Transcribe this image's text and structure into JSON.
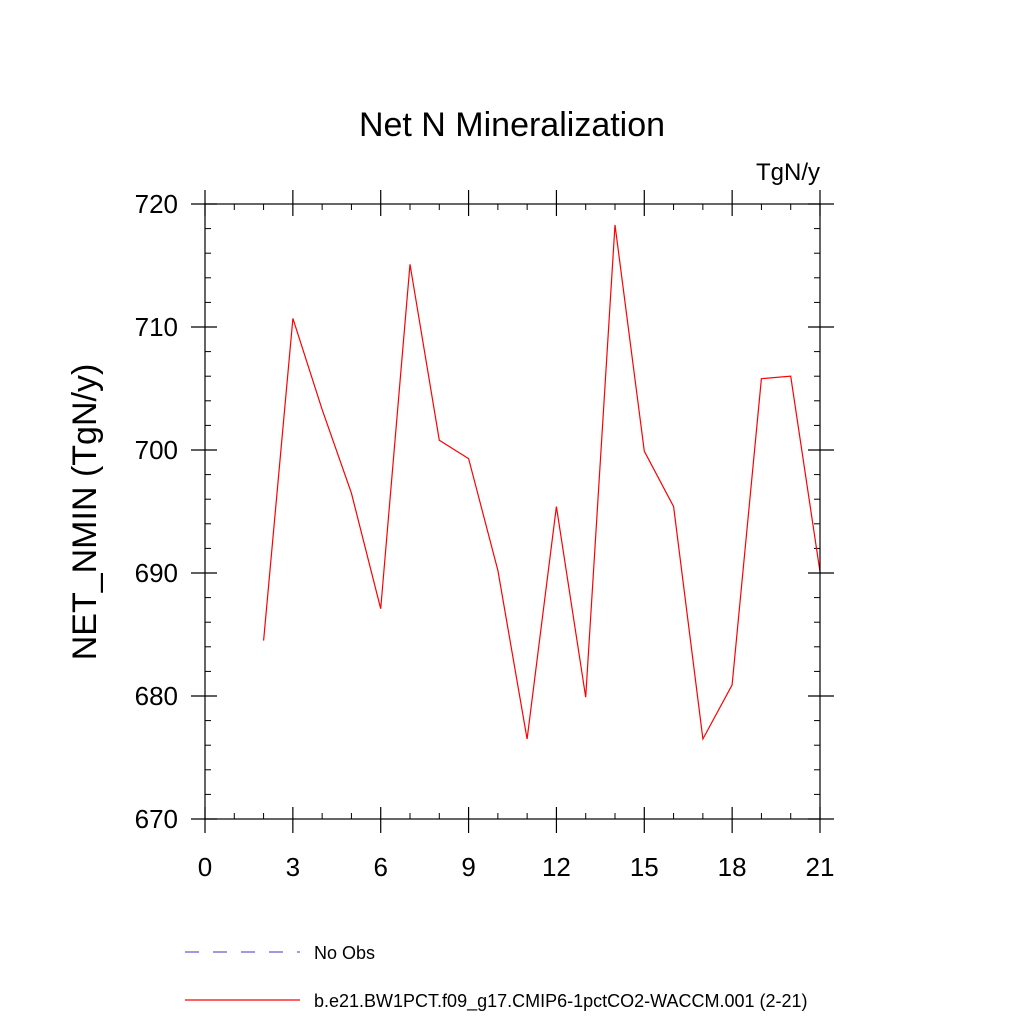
{
  "chart_data": {
    "type": "line",
    "title": "Net N Mineralization",
    "units_label": "TgN/y",
    "xlabel": "",
    "ylabel": "NET_NMIN  (TgN/y)",
    "xlim": [
      0,
      21
    ],
    "ylim": [
      670,
      720
    ],
    "x_ticks": [
      0,
      3,
      6,
      9,
      12,
      15,
      18,
      21
    ],
    "x_tick_labels": [
      "0",
      "3",
      "6",
      "9",
      "12",
      "15",
      "18",
      "21"
    ],
    "y_ticks": [
      670,
      680,
      690,
      700,
      710,
      720
    ],
    "y_tick_labels": [
      "670",
      "680",
      "690",
      "700",
      "710",
      "720"
    ],
    "series": [
      {
        "name": "b.e21.BW1PCT.f09_g17.CMIP6-1pctCO2-WACCM.001 (2-21)",
        "color": "#ff0000",
        "x": [
          2,
          3,
          4,
          5,
          6,
          7,
          8,
          9,
          10,
          11,
          12,
          13,
          14,
          15,
          16,
          17,
          18,
          19,
          20,
          21
        ],
        "y": [
          684.5,
          710.7,
          703.3,
          696.5,
          687.1,
          715.1,
          700.8,
          699.3,
          690.2,
          676.5,
          695.4,
          679.9,
          718.3,
          699.9,
          695.4,
          676.5,
          680.9,
          705.8,
          706.0,
          690.1
        ]
      }
    ],
    "legend": [
      {
        "label": "No Obs",
        "color": "#6a5acd",
        "style": "dashed"
      },
      {
        "label": "b.e21.BW1PCT.f09_g17.CMIP6-1pctCO2-WACCM.001 (2-21)",
        "color": "#ff0000",
        "style": "solid"
      }
    ]
  }
}
